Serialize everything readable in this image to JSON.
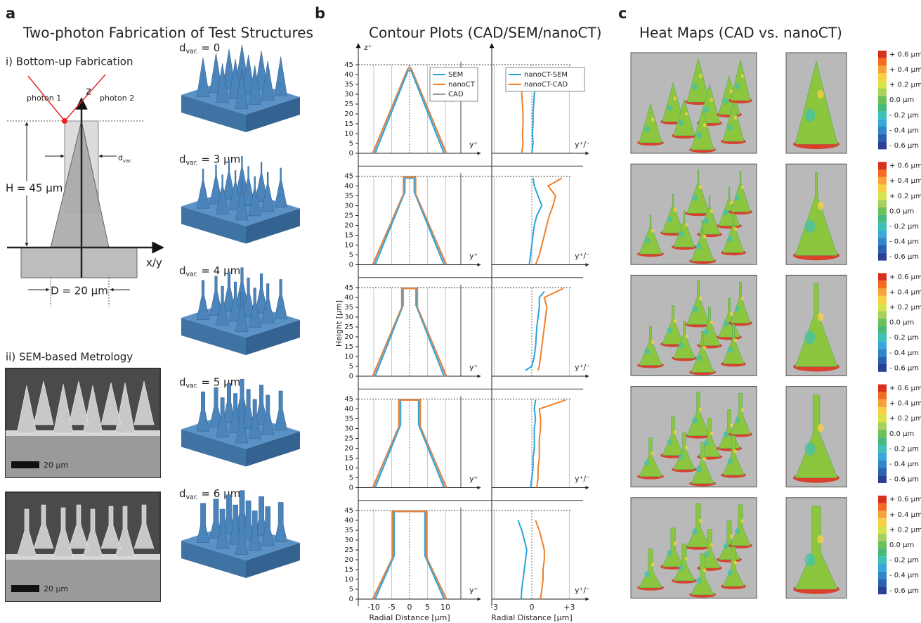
{
  "panel_a": {
    "label": "a",
    "title": "Two-photon Fabrication of Test Structures",
    "section_i": "i) Bottom-up Fabrication",
    "diagram": {
      "photon_1": "photon 1",
      "photon_2": "photon 2",
      "z_axis": "z",
      "d_var": {
        "base": "d",
        "sub": "var."
      },
      "height": "H = 45 µm",
      "xy_axis": "x/y",
      "diameter": "D = 20 µm"
    },
    "section_ii": "ii) SEM-based Metrology",
    "sem_scale_bars": [
      "20 µm",
      "20 µm"
    ],
    "variants": [
      {
        "base": "d",
        "sub": "var.",
        "rest": " = 0"
      },
      {
        "base": "d",
        "sub": "var.",
        "rest": " = 3 µm"
      },
      {
        "base": "d",
        "sub": "var.",
        "rest": " = 4 µm"
      },
      {
        "base": "d",
        "sub": "var.",
        "rest": " = 5 µm"
      },
      {
        "base": "d",
        "sub": "var.",
        "rest": " = 6 µm"
      }
    ]
  },
  "panel_b": {
    "label": "b",
    "title": "Contour Plots (CAD/SEM/nanoCT)",
    "y_label": "Height [µm]",
    "z_marker": "z⁺",
    "y_marker": "y⁺",
    "yd_marker": "y⁺/⁻",
    "profile": {
      "type": "line",
      "x_label": "Radial Distance [µm]",
      "xlim": [
        -14.3,
        14.3
      ],
      "ylim": [
        0,
        46.5
      ],
      "xticks": [
        -10,
        -5,
        0,
        5,
        10
      ],
      "yticks": [
        0,
        5,
        10,
        15,
        20,
        25,
        30,
        35,
        40,
        45
      ],
      "series": [
        {
          "name": "SEM",
          "color": "#29a3dc"
        },
        {
          "name": "nanoCT",
          "color": "#f07f2a"
        },
        {
          "name": "CAD",
          "color": "#9a9a9a"
        }
      ],
      "rows": [
        {
          "lines": [
            {
              "x": [
                -9.6,
                -0.4,
                0.4,
                9.6
              ],
              "y": [
                0,
                42,
                42,
                0
              ]
            },
            {
              "x": [
                -10.3,
                -0.5,
                0.5,
                10.3
              ],
              "y": [
                0,
                43,
                43,
                0
              ]
            },
            {
              "x": [
                -10,
                0,
                10
              ],
              "y": [
                0,
                45,
                0
              ]
            }
          ]
        },
        {
          "lines": [
            {
              "x": [
                -9.6,
                -1.3,
                -1.3,
                1.3,
                1.3,
                9.6
              ],
              "y": [
                0,
                37,
                44,
                44,
                37,
                0
              ]
            },
            {
              "x": [
                -10.3,
                -1.7,
                -1.7,
                1.7,
                1.7,
                10.3
              ],
              "y": [
                0,
                36,
                44.5,
                44.5,
                36,
                0
              ]
            },
            {
              "x": [
                -10,
                -1.5,
                -1.5,
                1.5,
                1.5,
                10
              ],
              "y": [
                0,
                37,
                45,
                45,
                37,
                0
              ]
            }
          ]
        },
        {
          "lines": [
            {
              "x": [
                -9.6,
                -1.8,
                -1.8,
                1.8,
                1.8,
                9.6
              ],
              "y": [
                0,
                36,
                44.5,
                44.5,
                36,
                0
              ]
            },
            {
              "x": [
                -10.3,
                -2.2,
                -2.2,
                2.2,
                2.2,
                10.3
              ],
              "y": [
                0,
                35,
                44.5,
                44.5,
                35,
                0
              ]
            },
            {
              "x": [
                -10,
                -2,
                -2,
                2,
                2,
                10
              ],
              "y": [
                0,
                36,
                45,
                45,
                36,
                0
              ]
            }
          ]
        },
        {
          "lines": [
            {
              "x": [
                -9.6,
                -2.5,
                -2.5,
                2.5,
                2.5,
                9.6
              ],
              "y": [
                0,
                32,
                44.5,
                44.5,
                32,
                0
              ]
            },
            {
              "x": [
                -10.3,
                -3,
                -3,
                3,
                3,
                10.3
              ],
              "y": [
                0,
                31,
                44.5,
                44.5,
                31,
                0
              ]
            },
            {
              "x": [
                -10,
                -2.8,
                -2.8,
                2.8,
                2.8,
                10
              ],
              "y": [
                0,
                32,
                45,
                45,
                32,
                0
              ]
            }
          ]
        },
        {
          "lines": [
            {
              "x": [
                -9.6,
                -4.3,
                -4.3,
                4.3,
                4.3,
                9.6
              ],
              "y": [
                0,
                22,
                44.5,
                44.5,
                22,
                0
              ]
            },
            {
              "x": [
                -10.3,
                -4.8,
                -4.8,
                4.8,
                4.8,
                10.3
              ],
              "y": [
                0,
                21,
                44.5,
                44.5,
                21,
                0
              ]
            },
            {
              "x": [
                -10,
                -4.5,
                -4.5,
                4.5,
                4.5,
                10
              ],
              "y": [
                0,
                22,
                45,
                45,
                22,
                0
              ]
            }
          ]
        }
      ]
    },
    "deviation": {
      "type": "line",
      "x_label": "Radial Distance [µm]",
      "xlim": [
        -3.2,
        4.1
      ],
      "ylim": [
        0,
        46.5
      ],
      "xticks": [
        -3,
        0,
        {
          "value": 3,
          "label": "+3"
        }
      ],
      "series": [
        {
          "name": "nanoCT-SEM",
          "color": "#29a3dc"
        },
        {
          "name": "nanoCT-CAD",
          "color": "#f07f2a"
        }
      ],
      "rows": [
        {
          "lines": [
            {
              "x": [
                0.0,
                0.1,
                0.05,
                0.1,
                0.1,
                0.15,
                0.2,
                0.3,
                0.4,
                0.1
              ],
              "y": [
                0,
                5,
                10,
                15,
                20,
                25,
                30,
                35,
                40,
                42
              ]
            },
            {
              "x": [
                -0.8,
                -0.7,
                -0.75,
                -0.7,
                -0.7,
                -0.75,
                -0.8,
                -0.85,
                -0.9,
                -1.3
              ],
              "y": [
                0,
                5,
                10,
                15,
                20,
                25,
                30,
                35,
                40,
                42
              ]
            }
          ]
        },
        {
          "lines": [
            {
              "x": [
                -0.2,
                -0.1,
                0,
                0.1,
                0.2,
                0.4,
                0.8,
                0.5,
                0.2,
                0.1
              ],
              "y": [
                0,
                5,
                10,
                15,
                20,
                25,
                30,
                35,
                40,
                44
              ]
            },
            {
              "x": [
                0.3,
                0.6,
                0.8,
                1.0,
                1.2,
                1.4,
                1.7,
                1.9,
                1.3,
                2.4
              ],
              "y": [
                0,
                5,
                10,
                15,
                20,
                25,
                30,
                35,
                40,
                44
              ]
            }
          ]
        },
        {
          "lines": [
            {
              "x": [
                -0.5,
                0.0,
                0.2,
                0.3,
                0.35,
                0.4,
                0.5,
                0.6,
                0.6,
                1.0
              ],
              "y": [
                3,
                5,
                10,
                15,
                20,
                25,
                30,
                35,
                40,
                43
              ]
            },
            {
              "x": [
                0.5,
                0.6,
                0.7,
                0.8,
                0.9,
                1.0,
                1.1,
                1.2,
                1.0,
                2.5
              ],
              "y": [
                3,
                5,
                10,
                15,
                20,
                25,
                30,
                35,
                40,
                44.5
              ]
            }
          ]
        },
        {
          "lines": [
            {
              "x": [
                -0.1,
                0.0,
                0.1,
                0.1,
                0.2,
                0.2,
                0.2,
                0.3,
                0.2,
                0.3
              ],
              "y": [
                0,
                5,
                10,
                15,
                20,
                25,
                30,
                35,
                40,
                44.5
              ]
            },
            {
              "x": [
                0.4,
                0.5,
                0.5,
                0.6,
                0.6,
                0.6,
                0.7,
                0.7,
                0.6,
                2.7
              ],
              "y": [
                0,
                5,
                10,
                15,
                20,
                25,
                30,
                35,
                40,
                44.5
              ]
            }
          ]
        },
        {
          "lines": [
            {
              "x": [
                -0.85,
                -0.8,
                -0.7,
                -0.6,
                -0.5,
                -0.4,
                -0.6,
                -0.8,
                -1.1
              ],
              "y": [
                0,
                5,
                10,
                15,
                20,
                25,
                30,
                35,
                40
              ]
            },
            {
              "x": [
                0.7,
                0.8,
                0.9,
                0.9,
                1.0,
                1.0,
                0.8,
                0.6,
                0.3
              ],
              "y": [
                0,
                5,
                10,
                15,
                20,
                25,
                30,
                35,
                40
              ]
            }
          ]
        }
      ]
    }
  },
  "panel_c": {
    "label": "c",
    "title": "Heat Maps (CAD vs. nanoCT)",
    "colorbar": {
      "labels": [
        "+ 0.6 µm",
        "+ 0.4 µm",
        "+ 0.2 µm",
        "0.0 µm",
        "- 0.2 µm",
        "- 0.4 µm",
        "- 0.6 µm"
      ],
      "colors": [
        "#d7301f",
        "#f26b21",
        "#f7a33b",
        "#f7d046",
        "#d8e24a",
        "#a6d15c",
        "#6cc05a",
        "#47b97a",
        "#3cc0b8",
        "#3aa7dc",
        "#2f86c8",
        "#2a62b0",
        "#2a3f96"
      ]
    }
  }
}
